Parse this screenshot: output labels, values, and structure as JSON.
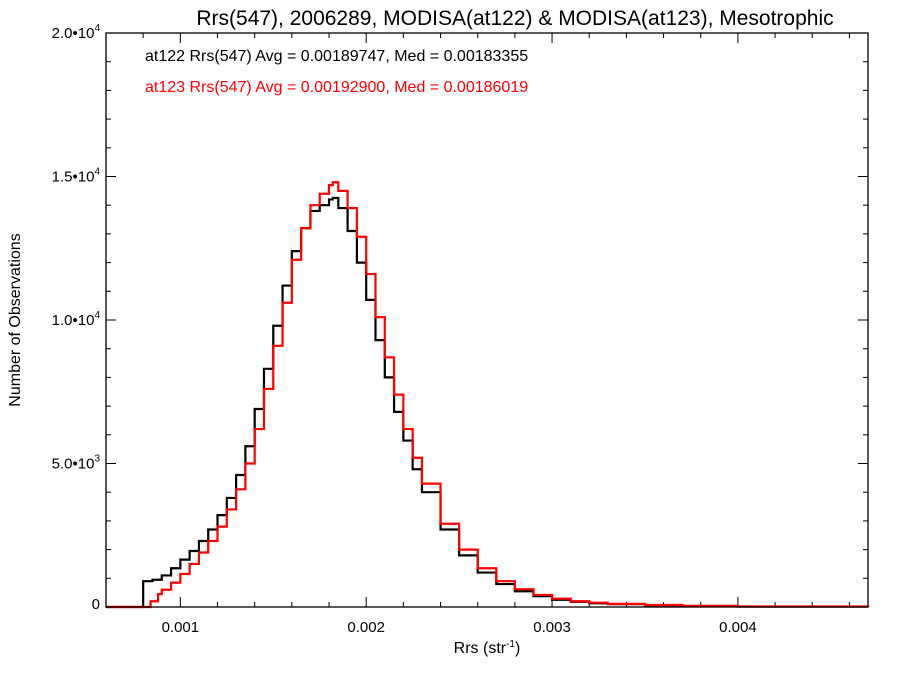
{
  "chart_data": {
    "type": "line",
    "title": "Rrs(547), 2006289, MODISA(at122) & MODISA(at123), Mesotrophic",
    "xlabel_main": "Rrs (str",
    "xlabel_sup": "-1",
    "xlabel_end": ")",
    "ylabel": "Number of Observations",
    "xlim": [
      0.0006,
      0.0047
    ],
    "ylim": [
      0,
      20000
    ],
    "grid": false,
    "x_ticks": [
      {
        "value": 0.001,
        "label": "0.001"
      },
      {
        "value": 0.002,
        "label": "0.002"
      },
      {
        "value": 0.003,
        "label": "0.003"
      },
      {
        "value": 0.004,
        "label": "0.004"
      }
    ],
    "y_ticks": [
      {
        "value": 0,
        "mantissa": "0",
        "exp": ""
      },
      {
        "value": 5000,
        "mantissa": "5.0•10",
        "exp": "3"
      },
      {
        "value": 10000,
        "mantissa": "1.0•10",
        "exp": "4"
      },
      {
        "value": 15000,
        "mantissa": "1.5•10",
        "exp": "4"
      },
      {
        "value": 20000,
        "mantissa": "2.0•10",
        "exp": "4"
      }
    ],
    "annotations": [
      {
        "text": "at122 Rrs(547) Avg = 0.00189747, Med = 0.00183355",
        "color": "#000000"
      },
      {
        "text": "at123 Rrs(547) Avg = 0.00192900, Med = 0.00186019",
        "color": "#ff0000"
      }
    ],
    "series": [
      {
        "color": "#000000",
        "x": [
          0.0006,
          0.00075,
          0.00079,
          0.0008,
          0.00085,
          0.0009,
          0.00095,
          0.001,
          0.00105,
          0.0011,
          0.00115,
          0.0012,
          0.00125,
          0.0013,
          0.00135,
          0.0014,
          0.00145,
          0.0015,
          0.00155,
          0.0016,
          0.00165,
          0.0017,
          0.00175,
          0.0018,
          0.00182,
          0.00185,
          0.0019,
          0.00195,
          0.002,
          0.00205,
          0.0021,
          0.00215,
          0.0022,
          0.00225,
          0.0023,
          0.0024,
          0.0025,
          0.0026,
          0.0027,
          0.0028,
          0.0029,
          0.003,
          0.0031,
          0.0032,
          0.0033,
          0.0035,
          0.0037,
          0.004,
          0.0047
        ],
        "y": [
          0,
          0,
          0,
          900,
          950,
          1100,
          1350,
          1650,
          1950,
          2300,
          2700,
          3200,
          3800,
          4600,
          5600,
          6900,
          8300,
          9800,
          11200,
          12400,
          13200,
          13800,
          14000,
          14200,
          14250,
          13900,
          13100,
          12000,
          10700,
          9300,
          8000,
          6800,
          5800,
          4800,
          4000,
          2700,
          1800,
          1200,
          800,
          550,
          380,
          250,
          180,
          130,
          100,
          60,
          35,
          15,
          5
        ]
      },
      {
        "color": "#ff0000",
        "x": [
          0.0006,
          0.00075,
          0.00082,
          0.00084,
          0.00088,
          0.0009,
          0.00095,
          0.001,
          0.00105,
          0.0011,
          0.00115,
          0.0012,
          0.00125,
          0.0013,
          0.00135,
          0.0014,
          0.00145,
          0.0015,
          0.00155,
          0.0016,
          0.00165,
          0.0017,
          0.00175,
          0.0018,
          0.00182,
          0.00185,
          0.0019,
          0.00195,
          0.002,
          0.00205,
          0.0021,
          0.00215,
          0.0022,
          0.00225,
          0.0023,
          0.0024,
          0.0025,
          0.0026,
          0.0027,
          0.0028,
          0.0029,
          0.003,
          0.0031,
          0.0032,
          0.0033,
          0.0035,
          0.0037,
          0.004,
          0.0047
        ],
        "y": [
          0,
          0,
          0,
          200,
          450,
          600,
          850,
          1150,
          1500,
          1900,
          2300,
          2800,
          3400,
          4100,
          5000,
          6200,
          7600,
          9100,
          10600,
          12100,
          13200,
          14000,
          14400,
          14700,
          14800,
          14500,
          13900,
          12900,
          11600,
          10100,
          8700,
          7400,
          6200,
          5200,
          4300,
          2900,
          2000,
          1350,
          900,
          620,
          420,
          290,
          200,
          150,
          110,
          70,
          40,
          18,
          5
        ]
      }
    ]
  }
}
